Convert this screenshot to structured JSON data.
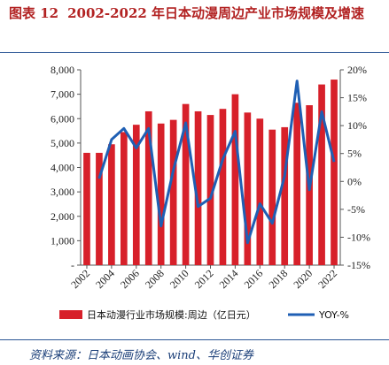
{
  "figure": {
    "number": "图表 12",
    "title": "2002-2022 年日本动漫周边产业市场规模及增速"
  },
  "source": "资料来源：日本动画协会、wind、华创证券",
  "chart_data": {
    "type": "bar",
    "x": [
      2002,
      2003,
      2004,
      2005,
      2006,
      2007,
      2008,
      2009,
      2010,
      2011,
      2012,
      2013,
      2014,
      2015,
      2016,
      2017,
      2018,
      2019,
      2020,
      2021,
      2022
    ],
    "x_tick_labels": [
      "2002",
      "2004",
      "2006",
      "2008",
      "2010",
      "2012",
      "2014",
      "2016",
      "2018",
      "2020",
      "2022"
    ],
    "series": [
      {
        "name": "日本动漫行业市场规模:周边（亿日元）",
        "type": "bar",
        "axis": "left",
        "color": "#d7202a",
        "values": [
          4600,
          4600,
          4950,
          5450,
          5750,
          6300,
          5800,
          5950,
          6600,
          6300,
          6150,
          6400,
          7000,
          6250,
          6000,
          5550,
          5650,
          6650,
          6550,
          7400,
          7600
        ]
      },
      {
        "name": "YOY-%",
        "type": "line",
        "axis": "right",
        "color": "#1f5fb4",
        "values": [
          null,
          0.5,
          7.5,
          9.5,
          6.0,
          9.5,
          -8.0,
          2.0,
          10.5,
          -4.5,
          -3.0,
          4.0,
          9.0,
          -11.0,
          -4.0,
          -7.5,
          1.0,
          18.0,
          -1.5,
          12.5,
          3.5
        ]
      }
    ],
    "y_left": {
      "min": 0,
      "max": 8000,
      "ticks": [
        0,
        1000,
        2000,
        3000,
        4000,
        5000,
        6000,
        7000,
        8000
      ],
      "tick_labels": [
        "-",
        "1,000",
        "2,000",
        "3,000",
        "4,000",
        "5,000",
        "6,000",
        "7,000",
        "8,000"
      ]
    },
    "y_right": {
      "min": -15,
      "max": 20,
      "ticks": [
        -15,
        -10,
        -5,
        0,
        5,
        10,
        15,
        20
      ],
      "tick_labels": [
        "-15%",
        "-10%",
        "-5%",
        "0%",
        "5%",
        "10%",
        "15%",
        "20%"
      ]
    },
    "legend_position": "bottom",
    "grid": false
  }
}
